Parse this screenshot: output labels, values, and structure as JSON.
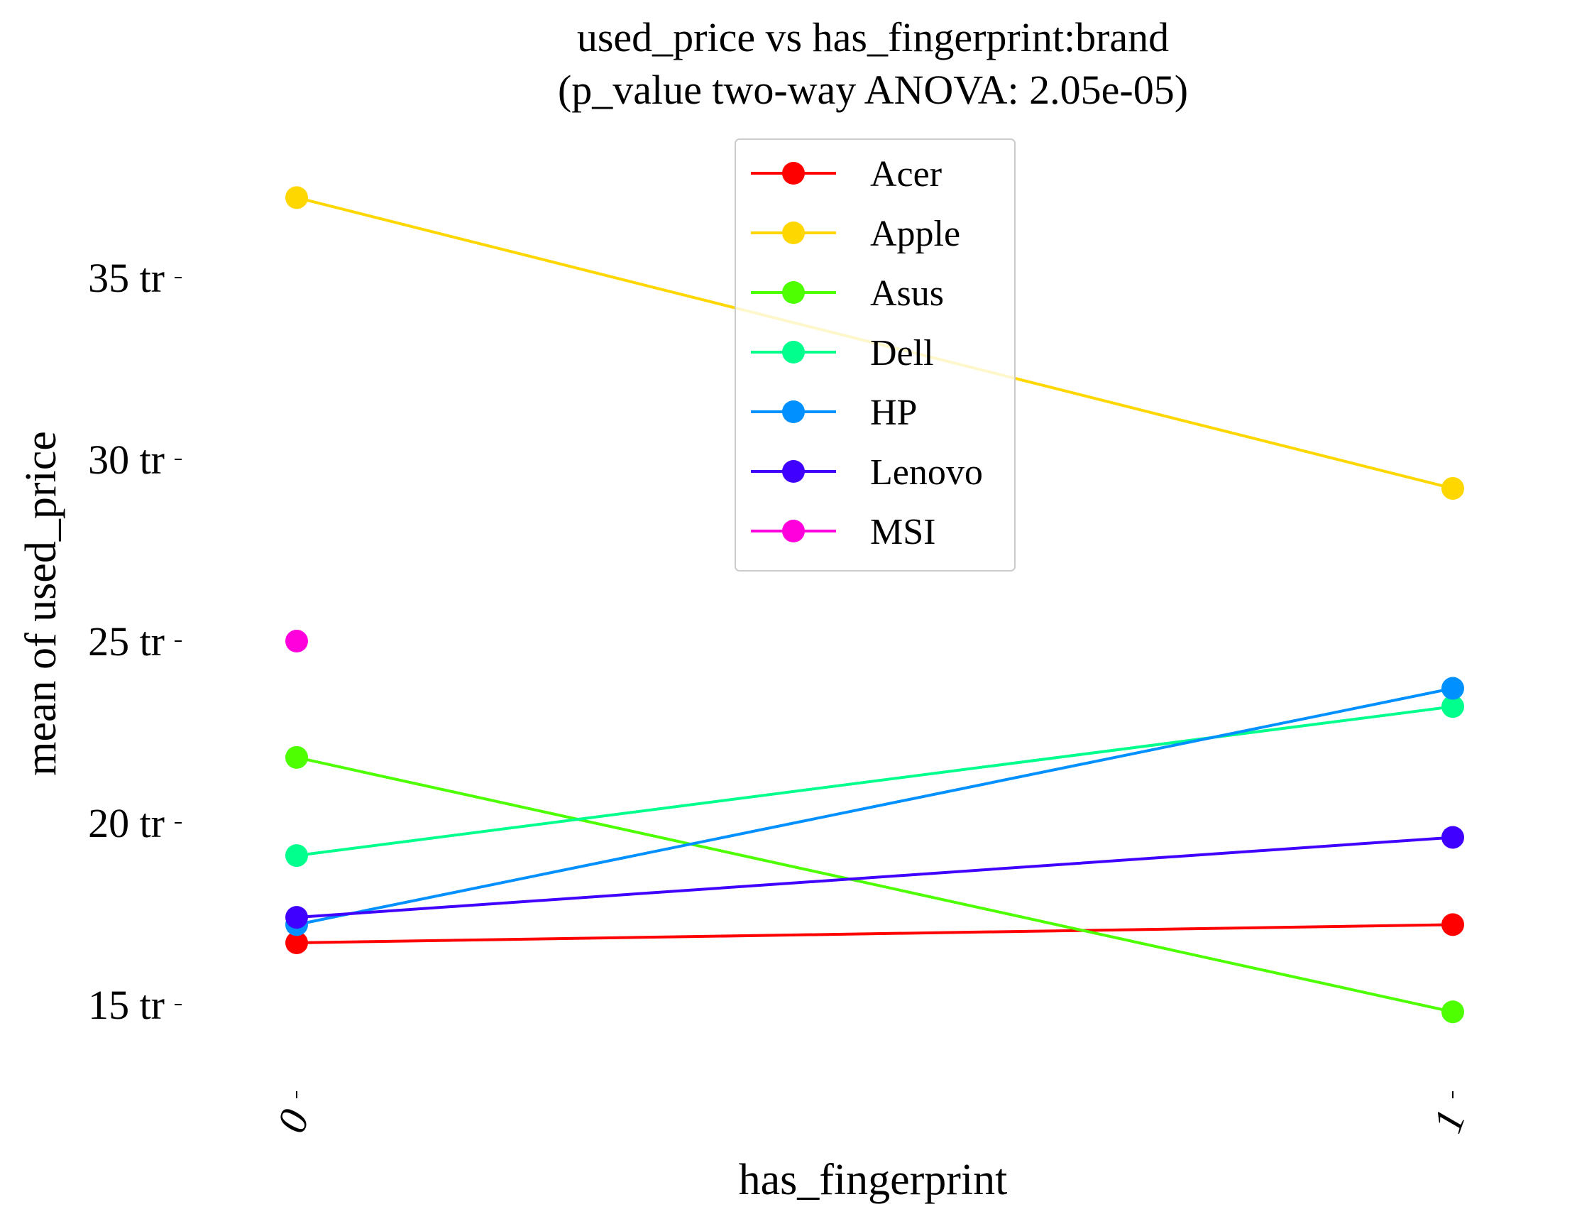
{
  "chart_data": {
    "type": "line",
    "title": "used_price vs has_fingerprint:brand",
    "subtitle": "(p_value two-way ANOVA: 2.05e-05)",
    "xlabel": "has_fingerprint",
    "ylabel": "mean of used_price",
    "categories": [
      "0",
      "1"
    ],
    "y_ticks": [
      15,
      20,
      25,
      30,
      35
    ],
    "y_tick_suffix": " tr",
    "ylim": [
      12.5,
      38
    ],
    "grid": false,
    "legend_position": "top-center",
    "series": [
      {
        "name": "Acer",
        "color": "#ff0000",
        "values": [
          16.7,
          17.2
        ]
      },
      {
        "name": "Apple",
        "color": "#ffd700",
        "values": [
          37.2,
          29.2
        ]
      },
      {
        "name": "Asus",
        "color": "#4dff00",
        "values": [
          21.8,
          14.8
        ]
      },
      {
        "name": "Dell",
        "color": "#00ff8c",
        "values": [
          19.1,
          23.2
        ]
      },
      {
        "name": "HP",
        "color": "#0090ff",
        "values": [
          17.2,
          23.7
        ]
      },
      {
        "name": "Lenovo",
        "color": "#4000ff",
        "values": [
          17.4,
          19.6
        ]
      },
      {
        "name": "MSI",
        "color": "#ff00dd",
        "values": [
          25.0,
          null
        ]
      }
    ]
  }
}
